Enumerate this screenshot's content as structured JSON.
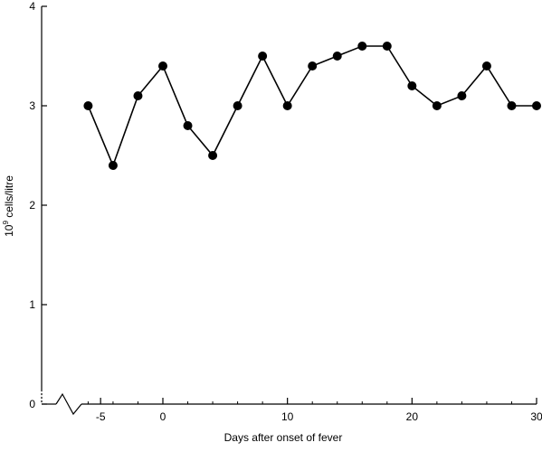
{
  "chart_data": {
    "type": "line",
    "title": "",
    "xlabel": "Days after onset of fever",
    "ylabel_base": "10",
    "ylabel_exp": "9",
    "ylabel_rest": " cells/litre",
    "xlim": [
      -10,
      30
    ],
    "ylim": [
      0,
      4
    ],
    "x_ticks": [
      -5,
      0,
      10,
      20,
      30
    ],
    "x_tick_labels": [
      "-5",
      "0",
      "10",
      "20",
      "30"
    ],
    "y_ticks": [
      0,
      1,
      2,
      3,
      4
    ],
    "y_tick_labels": [
      "0",
      "1",
      "2",
      "3",
      "4"
    ],
    "axis_break": true,
    "grid": false,
    "line_color": "#000000",
    "marker_color": "#000000",
    "series": [
      {
        "x": [
          -6,
          -4,
          -2,
          0,
          2,
          4,
          6,
          8,
          10,
          12,
          14,
          16,
          18,
          20,
          22,
          24,
          26,
          28,
          30
        ],
        "y": [
          3.0,
          2.4,
          3.1,
          3.4,
          2.8,
          2.5,
          3.0,
          3.5,
          3.0,
          3.4,
          3.5,
          3.6,
          3.6,
          3.2,
          3.0,
          3.1,
          3.4,
          3.0,
          3.0
        ]
      }
    ]
  }
}
